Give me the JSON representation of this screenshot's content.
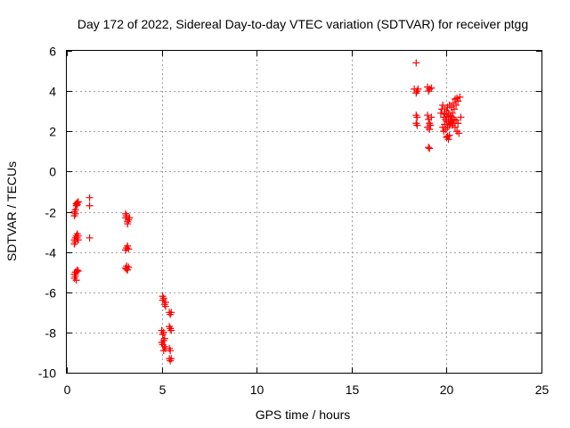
{
  "chart_data": {
    "type": "scatter",
    "title": "Day 172 of 2022, Sidereal Day-to-day VTEC variation (SDTVAR) for receiver ptgg",
    "xlabel": "GPS time / hours",
    "ylabel": "SDTVAR / TECUs",
    "xlim": [
      0,
      25
    ],
    "ylim": [
      -10,
      6
    ],
    "xticks": [
      0,
      5,
      10,
      15,
      20,
      25
    ],
    "yticks": [
      -10,
      -8,
      -6,
      -4,
      -2,
      0,
      2,
      4,
      6
    ],
    "grid": true,
    "marker": "+",
    "color": "#ff0000",
    "series": [
      {
        "name": "SDTVAR",
        "points": [
          [
            0.4,
            -2.2
          ],
          [
            0.4,
            -2.0
          ],
          [
            0.45,
            -1.9
          ],
          [
            0.45,
            -2.1
          ],
          [
            0.5,
            -1.7
          ],
          [
            0.5,
            -1.6
          ],
          [
            0.55,
            -1.55
          ],
          [
            0.55,
            -1.65
          ],
          [
            0.6,
            -1.5
          ],
          [
            0.4,
            -3.6
          ],
          [
            0.4,
            -3.4
          ],
          [
            0.45,
            -3.3
          ],
          [
            0.45,
            -3.5
          ],
          [
            0.5,
            -3.2
          ],
          [
            0.55,
            -3.1
          ],
          [
            0.55,
            -3.3
          ],
          [
            0.6,
            -3.2
          ],
          [
            0.6,
            -3.4
          ],
          [
            0.4,
            -5.3
          ],
          [
            0.4,
            -5.1
          ],
          [
            0.45,
            -5.2
          ],
          [
            0.45,
            -5.0
          ],
          [
            0.5,
            -5.0
          ],
          [
            0.55,
            -4.9
          ],
          [
            0.5,
            -5.4
          ],
          [
            0.6,
            -4.95
          ],
          [
            1.2,
            -1.3
          ],
          [
            1.2,
            -1.7
          ],
          [
            1.2,
            -3.3
          ],
          [
            3.1,
            -2.1
          ],
          [
            3.1,
            -2.3
          ],
          [
            3.15,
            -2.2
          ],
          [
            3.2,
            -2.5
          ],
          [
            3.25,
            -2.4
          ],
          [
            3.2,
            -2.6
          ],
          [
            3.3,
            -2.3
          ],
          [
            3.1,
            -3.9
          ],
          [
            3.15,
            -3.8
          ],
          [
            3.2,
            -3.7
          ],
          [
            3.25,
            -3.85
          ],
          [
            3.1,
            -4.8
          ],
          [
            3.15,
            -4.7
          ],
          [
            3.2,
            -4.9
          ],
          [
            3.25,
            -4.75
          ],
          [
            3.15,
            -4.85
          ],
          [
            5.05,
            -6.2
          ],
          [
            5.05,
            -6.4
          ],
          [
            5.1,
            -6.3
          ],
          [
            5.15,
            -6.6
          ],
          [
            5.2,
            -6.7
          ],
          [
            5.2,
            -6.5
          ],
          [
            5.4,
            -7.0
          ],
          [
            5.45,
            -7.1
          ],
          [
            5.5,
            -7.0
          ],
          [
            5.0,
            -7.9
          ],
          [
            5.05,
            -8.1
          ],
          [
            5.1,
            -8.0
          ],
          [
            5.15,
            -8.3
          ],
          [
            5.0,
            -8.5
          ],
          [
            5.05,
            -8.6
          ],
          [
            5.1,
            -8.4
          ],
          [
            5.15,
            -8.7
          ],
          [
            5.1,
            -8.9
          ],
          [
            5.2,
            -8.8
          ],
          [
            5.4,
            -7.7
          ],
          [
            5.45,
            -7.8
          ],
          [
            5.5,
            -7.9
          ],
          [
            5.4,
            -8.8
          ],
          [
            5.45,
            -8.9
          ],
          [
            5.4,
            -9.3
          ],
          [
            5.45,
            -9.4
          ],
          [
            5.5,
            -9.3
          ],
          [
            18.4,
            5.4
          ],
          [
            18.3,
            4.1
          ],
          [
            18.4,
            3.9
          ],
          [
            18.45,
            4.0
          ],
          [
            18.5,
            4.1
          ],
          [
            18.4,
            2.8
          ],
          [
            18.45,
            2.7
          ],
          [
            18.4,
            2.4
          ],
          [
            18.45,
            2.3
          ],
          [
            19.0,
            4.2
          ],
          [
            19.1,
            4.1
          ],
          [
            19.2,
            4.15
          ],
          [
            19.05,
            4.0
          ],
          [
            19.0,
            2.8
          ],
          [
            19.05,
            2.6
          ],
          [
            19.1,
            2.4
          ],
          [
            19.0,
            2.2
          ],
          [
            19.15,
            2.3
          ],
          [
            19.1,
            2.1
          ],
          [
            19.2,
            2.7
          ],
          [
            19.05,
            1.2
          ],
          [
            19.1,
            1.15
          ],
          [
            19.8,
            3.3
          ],
          [
            19.9,
            3.1
          ],
          [
            20.0,
            3.0
          ],
          [
            20.1,
            2.9
          ],
          [
            20.2,
            2.8
          ],
          [
            20.3,
            2.7
          ],
          [
            20.4,
            2.6
          ],
          [
            20.5,
            2.55
          ],
          [
            20.6,
            2.4
          ],
          [
            19.8,
            2.2
          ],
          [
            19.9,
            2.35
          ],
          [
            20.0,
            2.5
          ],
          [
            20.1,
            2.6
          ],
          [
            20.2,
            2.75
          ],
          [
            20.3,
            2.9
          ],
          [
            20.4,
            3.1
          ],
          [
            20.5,
            3.3
          ],
          [
            20.6,
            3.5
          ],
          [
            20.7,
            3.7
          ],
          [
            19.85,
            2.0
          ],
          [
            19.95,
            2.1
          ],
          [
            20.05,
            2.2
          ],
          [
            20.15,
            2.3
          ],
          [
            20.25,
            2.5
          ],
          [
            20.35,
            2.4
          ],
          [
            20.45,
            2.2
          ],
          [
            20.55,
            2.0
          ],
          [
            20.65,
            1.9
          ],
          [
            20.75,
            2.7
          ],
          [
            19.7,
            2.9
          ],
          [
            19.75,
            3.1
          ],
          [
            19.85,
            2.7
          ],
          [
            19.95,
            2.6
          ],
          [
            20.05,
            3.2
          ],
          [
            20.15,
            3.3
          ],
          [
            20.25,
            3.2
          ],
          [
            20.35,
            3.4
          ],
          [
            20.45,
            3.6
          ],
          [
            20.55,
            3.65
          ],
          [
            19.9,
            2.85
          ],
          [
            20.0,
            2.7
          ],
          [
            20.1,
            2.5
          ],
          [
            20.2,
            2.4
          ],
          [
            20.3,
            2.3
          ],
          [
            20.0,
            1.7
          ],
          [
            20.1,
            1.6
          ],
          [
            20.15,
            1.8
          ],
          [
            20.05,
            1.75
          ]
        ]
      }
    ]
  }
}
